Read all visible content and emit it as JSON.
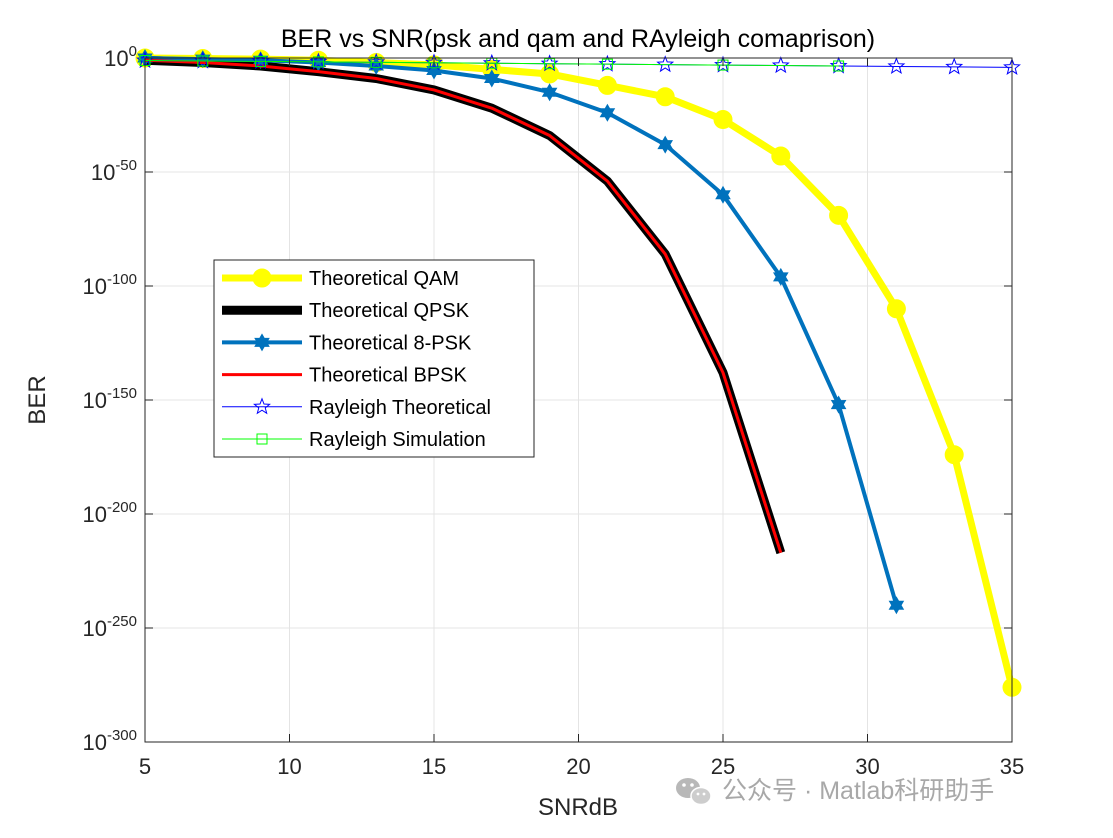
{
  "chart_data": {
    "type": "line",
    "title": "BER vs SNR(psk and qam and RAyleigh comaprison)",
    "xlabel": "SNRdB",
    "ylabel": "BER",
    "xlim": [
      5,
      35
    ],
    "ylim_log10": [
      -300,
      0
    ],
    "y_scale": "log",
    "grid": "on",
    "legend_position": "center-left",
    "x_ticks": [
      5,
      10,
      15,
      20,
      25,
      30,
      35
    ],
    "y_ticks": [
      {
        "base": "10",
        "exp": "0",
        "value": 0
      },
      {
        "base": "10",
        "exp": "-50",
        "value": -50
      },
      {
        "base": "10",
        "exp": "-100",
        "value": -100
      },
      {
        "base": "10",
        "exp": "-150",
        "value": -150
      },
      {
        "base": "10",
        "exp": "-200",
        "value": -200
      },
      {
        "base": "10",
        "exp": "-250",
        "value": -250
      },
      {
        "base": "10",
        "exp": "-300",
        "value": -300
      }
    ],
    "series_note": "y values given as log10(BER)",
    "series": [
      {
        "name": "Theoretical QAM",
        "color": "#ffff00",
        "marker": "circle",
        "x": [
          5,
          7,
          9,
          11,
          13,
          15,
          17,
          19,
          21,
          23,
          25,
          27,
          29,
          31,
          33,
          35
        ],
        "log10_y": [
          0,
          -0.2,
          -0.5,
          -1,
          -2,
          -3,
          -5,
          -7,
          -12,
          -17,
          -27,
          -43,
          -69,
          -110,
          -174,
          -276
        ]
      },
      {
        "name": "Theoretical QPSK",
        "color": "#000000",
        "marker": "none",
        "x": [
          5,
          7,
          9,
          11,
          13,
          15,
          17,
          19,
          21,
          23,
          25,
          27
        ],
        "log10_y": [
          -1,
          -2,
          -3.5,
          -6,
          -9,
          -14,
          -22,
          -34,
          -54,
          -86,
          -138,
          -217
        ]
      },
      {
        "name": "Theoretical 8-PSK",
        "color": "#0072bd",
        "marker": "hexagram",
        "x": [
          5,
          7,
          9,
          11,
          13,
          15,
          17,
          19,
          21,
          23,
          25,
          27,
          29,
          31
        ],
        "log10_y": [
          0,
          -0.5,
          -1,
          -2,
          -3.5,
          -5.5,
          -9,
          -15,
          -24,
          -38,
          -60,
          -96,
          -152,
          -240
        ]
      },
      {
        "name": "Theoretical BPSK",
        "color": "#ff0000",
        "marker": "none",
        "x": [
          5,
          7,
          9,
          11,
          13,
          15,
          17,
          19,
          21,
          23,
          25,
          27
        ],
        "log10_y": [
          -1,
          -2,
          -3.5,
          -6,
          -9,
          -14,
          -22,
          -34,
          -54,
          -86,
          -138,
          -217
        ]
      },
      {
        "name": "Rayleigh Theoretical",
        "color": "#0000ff",
        "marker": "pentagram",
        "x": [
          5,
          7,
          9,
          11,
          13,
          15,
          17,
          19,
          21,
          23,
          25,
          27,
          29,
          31,
          33,
          35
        ],
        "log10_y": [
          -1.1,
          -1.3,
          -1.5,
          -1.7,
          -1.9,
          -2.1,
          -2.3,
          -2.5,
          -2.7,
          -2.9,
          -3.1,
          -3.3,
          -3.5,
          -3.7,
          -3.9,
          -4.1
        ]
      },
      {
        "name": "Rayleigh Simulation",
        "color": "#00ff00",
        "marker": "square",
        "x": [
          5,
          7,
          9,
          11,
          13,
          15,
          17,
          19,
          21,
          25,
          29
        ],
        "log10_y": [
          -1.1,
          -1.3,
          -1.5,
          -1.7,
          -1.9,
          -2.1,
          -2.3,
          -2.5,
          -2.7,
          -3.1,
          -3.5
        ]
      }
    ]
  },
  "watermark": {
    "text": "公众号 · Matlab科研助手",
    "icon": "wechat-icon"
  }
}
